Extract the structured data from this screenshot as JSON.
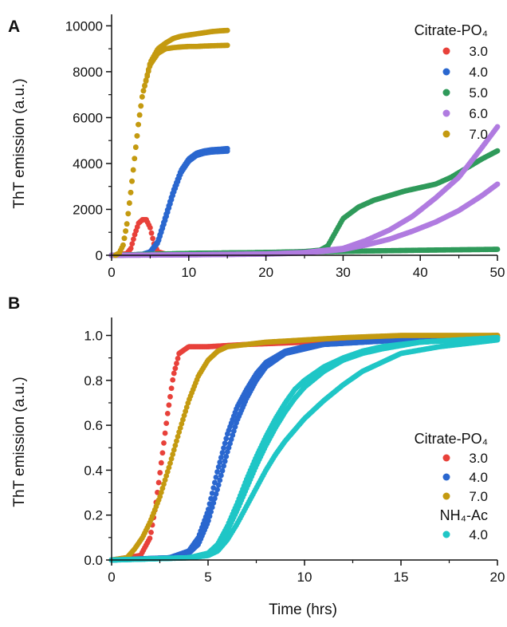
{
  "colors": {
    "ph3": "#e8413a",
    "ph4": "#2a67cf",
    "ph5": "#2f9a5a",
    "ph6": "#b07be0",
    "ph7": "#c49a10",
    "nh4ac4": "#1fc6c6"
  },
  "chart_data": [
    {
      "type": "scatter",
      "panel_label": "A",
      "title": "",
      "xlabel": "",
      "ylabel": "ThT emission (a.u.)",
      "xlim": [
        0,
        50
      ],
      "ylim": [
        0,
        10500
      ],
      "xticks": [
        0,
        10,
        20,
        30,
        40,
        50
      ],
      "xtick_labels": [
        "0",
        "10",
        "20",
        "30",
        "40",
        "50"
      ],
      "yticks": [
        0,
        2000,
        4000,
        6000,
        8000,
        10000
      ],
      "ytick_labels": [
        "0",
        "2000",
        "4000",
        "6000",
        "8000",
        "10000"
      ],
      "grid": false,
      "legend": {
        "placement": "top-right",
        "groups": [
          {
            "title": "Citrate-PO₄",
            "entries": [
              {
                "label": "3.0",
                "color_key": "ph3"
              },
              {
                "label": "4.0",
                "color_key": "ph4"
              },
              {
                "label": "5.0",
                "color_key": "ph5"
              },
              {
                "label": "6.0",
                "color_key": "ph6"
              },
              {
                "label": "7.0",
                "color_key": "ph7"
              }
            ]
          }
        ]
      },
      "series": [
        {
          "name": "3.0",
          "color_key": "ph3",
          "x": [
            0,
            1,
            2,
            2.5,
            3,
            3.5,
            4,
            4.5,
            5,
            5.5,
            6,
            7,
            8
          ],
          "y": [
            0,
            10,
            80,
            300,
            900,
            1400,
            1550,
            1550,
            1200,
            500,
            150,
            50,
            30
          ]
        },
        {
          "name": "4.0",
          "color_key": "ph4",
          "x": [
            0,
            2,
            4,
            5,
            6,
            7,
            8,
            9,
            10,
            11,
            12,
            13,
            14,
            15
          ],
          "y": [
            0,
            10,
            40,
            150,
            600,
            1700,
            2800,
            3700,
            4200,
            4450,
            4550,
            4600,
            4620,
            4650
          ]
        },
        {
          "name": "4.0",
          "color_key": "ph4",
          "x": [
            0,
            2,
            4,
            5,
            6,
            7,
            8,
            9,
            10,
            11,
            12,
            13,
            14,
            15
          ],
          "y": [
            0,
            10,
            40,
            130,
            550,
            1600,
            2700,
            3600,
            4100,
            4350,
            4450,
            4500,
            4520,
            4540
          ]
        },
        {
          "name": "5.0",
          "color_key": "ph5",
          "x": [
            0,
            10,
            20,
            25,
            27,
            28,
            29,
            30,
            32,
            34,
            36,
            38,
            40,
            42,
            44,
            46,
            48,
            50
          ],
          "y": [
            0,
            80,
            120,
            160,
            220,
            400,
            1000,
            1600,
            2100,
            2400,
            2600,
            2800,
            2950,
            3100,
            3400,
            3800,
            4200,
            4550
          ]
        },
        {
          "name": "5.0",
          "color_key": "ph5",
          "x": [
            0,
            10,
            20,
            30,
            40,
            50
          ],
          "y": [
            0,
            80,
            120,
            170,
            220,
            260
          ]
        },
        {
          "name": "6.0",
          "color_key": "ph6",
          "x": [
            0,
            10,
            20,
            25,
            30,
            33,
            36,
            39,
            42,
            45,
            48,
            50
          ],
          "y": [
            0,
            20,
            60,
            120,
            300,
            650,
            1100,
            1700,
            2500,
            3400,
            4700,
            5600
          ]
        },
        {
          "name": "6.0",
          "color_key": "ph6",
          "x": [
            0,
            10,
            20,
            25,
            30,
            33,
            36,
            39,
            42,
            45,
            48,
            50
          ],
          "y": [
            0,
            20,
            50,
            100,
            250,
            450,
            700,
            1050,
            1450,
            1950,
            2600,
            3100
          ]
        },
        {
          "name": "7.0",
          "color_key": "ph7",
          "x": [
            0.5,
            1,
            1.5,
            2,
            2.5,
            3,
            3.5,
            4,
            5,
            6,
            7,
            8,
            9,
            10,
            11,
            12,
            13,
            14,
            15
          ],
          "y": [
            0,
            100,
            450,
            1400,
            2800,
            4300,
            5800,
            7000,
            8400,
            9000,
            9250,
            9450,
            9550,
            9600,
            9650,
            9700,
            9750,
            9780,
            9800
          ]
        },
        {
          "name": "7.0",
          "color_key": "ph7",
          "x": [
            0.5,
            1,
            1.5,
            2,
            2.5,
            3,
            3.5,
            4,
            5,
            6,
            7,
            8,
            9,
            10,
            11,
            12,
            13,
            14,
            15
          ],
          "y": [
            0,
            100,
            450,
            1400,
            2800,
            4300,
            5800,
            7000,
            8300,
            8800,
            9000,
            9050,
            9080,
            9100,
            9100,
            9120,
            9130,
            9140,
            9150
          ]
        }
      ]
    },
    {
      "type": "scatter",
      "panel_label": "B",
      "title": "",
      "xlabel": "Time (hrs)",
      "ylabel": "ThT emission (a.u.)",
      "xlim": [
        0,
        20
      ],
      "ylim": [
        0,
        1.08
      ],
      "xticks": [
        0,
        5,
        10,
        15,
        20
      ],
      "xtick_labels": [
        "0",
        "5",
        "10",
        "15",
        "20"
      ],
      "yticks": [
        0,
        0.2,
        0.4,
        0.6,
        0.8,
        1.0
      ],
      "ytick_labels": [
        "0.0",
        "0.2",
        "0.4",
        "0.6",
        "0.8",
        "1.0"
      ],
      "grid": false,
      "legend": {
        "placement": "bottom-right",
        "groups": [
          {
            "title": "Citrate-PO₄",
            "entries": [
              {
                "label": "3.0",
                "color_key": "ph3"
              },
              {
                "label": "4.0",
                "color_key": "ph4"
              },
              {
                "label": "7.0",
                "color_key": "ph7"
              }
            ]
          },
          {
            "title": "NH₄-Ac",
            "entries": [
              {
                "label": "4.0",
                "color_key": "nh4ac4"
              }
            ]
          }
        ]
      },
      "series": [
        {
          "name": "3.0",
          "color_key": "ph3",
          "x": [
            0,
            1.5,
            2,
            2.3,
            2.6,
            2.9,
            3.2,
            3.5,
            4,
            5,
            7,
            10,
            13,
            16,
            20
          ],
          "y": [
            0,
            0.02,
            0.1,
            0.25,
            0.45,
            0.65,
            0.82,
            0.92,
            0.95,
            0.95,
            0.96,
            0.97,
            0.98,
            0.99,
            1.0
          ]
        },
        {
          "name": "4.0",
          "color_key": "ph4",
          "x": [
            0,
            3,
            4,
            4.5,
            5,
            5.5,
            6,
            6.5,
            7,
            7.5,
            8,
            9,
            10,
            11,
            13,
            15,
            17,
            20
          ],
          "y": [
            0,
            0.01,
            0.04,
            0.1,
            0.22,
            0.4,
            0.56,
            0.68,
            0.76,
            0.83,
            0.88,
            0.93,
            0.95,
            0.96,
            0.97,
            0.98,
            0.99,
            0.99
          ]
        },
        {
          "name": "4.0",
          "color_key": "ph4",
          "x": [
            0,
            3,
            4,
            4.5,
            5,
            5.5,
            6,
            6.5,
            7,
            7.5,
            8,
            9,
            10,
            11,
            13,
            15,
            17,
            20
          ],
          "y": [
            0,
            0.01,
            0.03,
            0.07,
            0.17,
            0.32,
            0.48,
            0.62,
            0.72,
            0.8,
            0.86,
            0.92,
            0.94,
            0.96,
            0.97,
            0.98,
            0.99,
            0.99
          ]
        },
        {
          "name": "7.0",
          "color_key": "ph7",
          "x": [
            0,
            0.8,
            1.2,
            1.6,
            2,
            2.5,
            3,
            3.5,
            4,
            4.5,
            5,
            5.5,
            6,
            7,
            8,
            10,
            12,
            15,
            20
          ],
          "y": [
            0,
            0.01,
            0.05,
            0.1,
            0.17,
            0.28,
            0.42,
            0.57,
            0.71,
            0.82,
            0.89,
            0.93,
            0.95,
            0.96,
            0.97,
            0.98,
            0.99,
            1.0,
            1.0
          ]
        },
        {
          "name": "4.0",
          "color_key": "nh4ac4",
          "x": [
            0,
            4,
            5,
            5.5,
            6,
            6.5,
            7,
            7.5,
            8,
            8.5,
            9,
            9.5,
            10,
            11,
            12,
            13,
            14,
            16,
            18,
            20
          ],
          "y": [
            0,
            0.01,
            0.03,
            0.07,
            0.15,
            0.25,
            0.36,
            0.46,
            0.55,
            0.63,
            0.7,
            0.76,
            0.8,
            0.86,
            0.9,
            0.93,
            0.95,
            0.97,
            0.98,
            0.99
          ]
        },
        {
          "name": "4.0",
          "color_key": "nh4ac4",
          "x": [
            0,
            4,
            5,
            5.5,
            6,
            6.5,
            7,
            7.5,
            8,
            8.5,
            9,
            10,
            11,
            12,
            13,
            14,
            15,
            17,
            20
          ],
          "y": [
            0,
            0.01,
            0.02,
            0.04,
            0.09,
            0.16,
            0.24,
            0.32,
            0.4,
            0.47,
            0.53,
            0.63,
            0.71,
            0.78,
            0.84,
            0.88,
            0.92,
            0.95,
            0.98
          ]
        },
        {
          "name": "4.0",
          "color_key": "nh4ac4",
          "x": [
            0,
            4,
            5,
            5.5,
            6,
            6.5,
            7,
            7.5,
            8,
            8.5,
            9,
            9.5,
            10,
            11,
            12,
            13,
            14,
            16,
            18,
            20
          ],
          "y": [
            0,
            0.01,
            0.02,
            0.06,
            0.13,
            0.22,
            0.32,
            0.42,
            0.51,
            0.59,
            0.66,
            0.72,
            0.77,
            0.84,
            0.89,
            0.92,
            0.94,
            0.97,
            0.98,
            0.99
          ]
        }
      ]
    }
  ]
}
